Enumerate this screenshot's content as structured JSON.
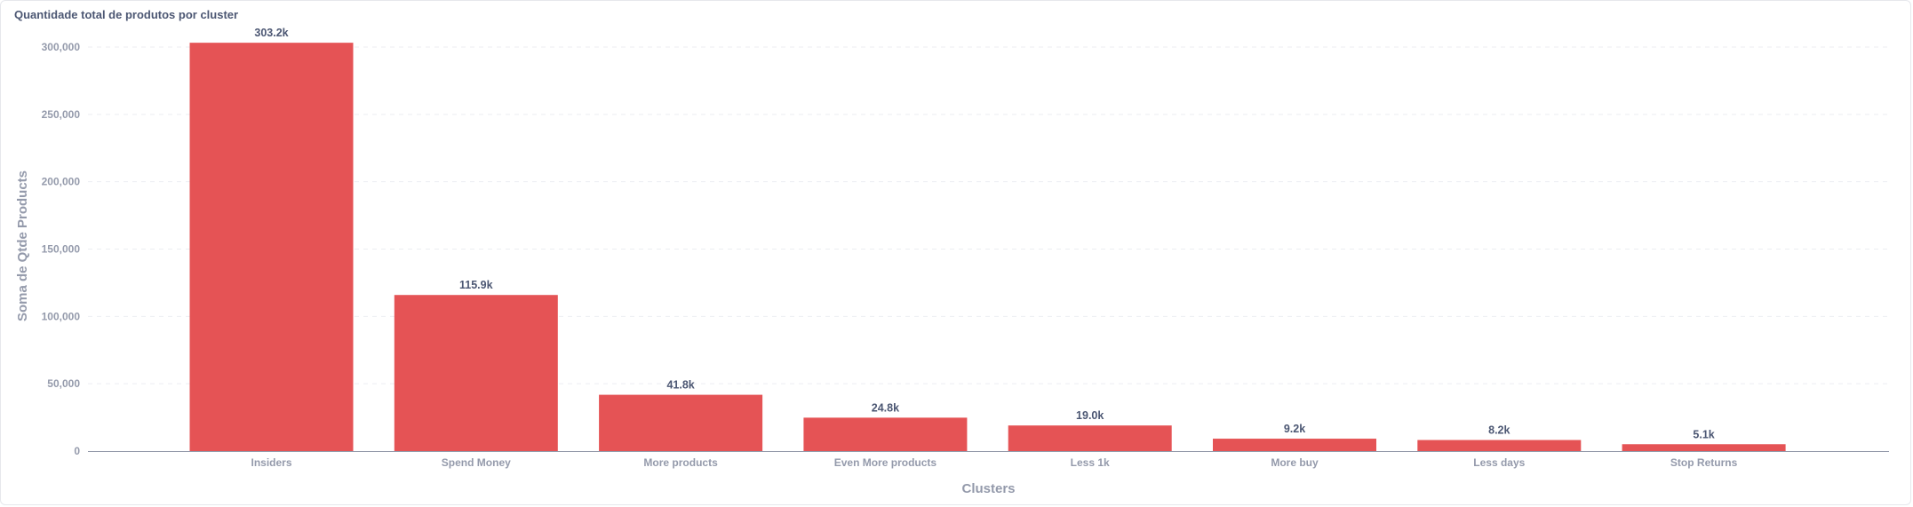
{
  "card": {
    "title": "Quantidade total de produtos por cluster"
  },
  "colors": {
    "bar": "#e55355",
    "grid": "#eceef2",
    "axis_text": "#949aab",
    "label_text": "#4c5773"
  },
  "chart_data": {
    "type": "bar",
    "xlabel": "Clusters",
    "ylabel": "Soma de Qtde Products",
    "ylim": [
      0,
      300000
    ],
    "yticks": [
      0,
      50000,
      100000,
      150000,
      200000,
      250000,
      300000
    ],
    "ytick_labels": [
      "0",
      "50,000",
      "100,000",
      "150,000",
      "200,000",
      "250,000",
      "300,000"
    ],
    "grid": true,
    "categories": [
      "Insiders",
      "Spend Money",
      "More products",
      "Even More products",
      "Less 1k",
      "More buy",
      "Less days",
      "Stop Returns"
    ],
    "values": [
      303200,
      115900,
      41800,
      24800,
      19000,
      9200,
      8200,
      5100
    ],
    "data_labels": [
      "303.2k",
      "115.9k",
      "41.8k",
      "24.8k",
      "19.0k",
      "9.2k",
      "8.2k",
      "5.1k"
    ]
  }
}
